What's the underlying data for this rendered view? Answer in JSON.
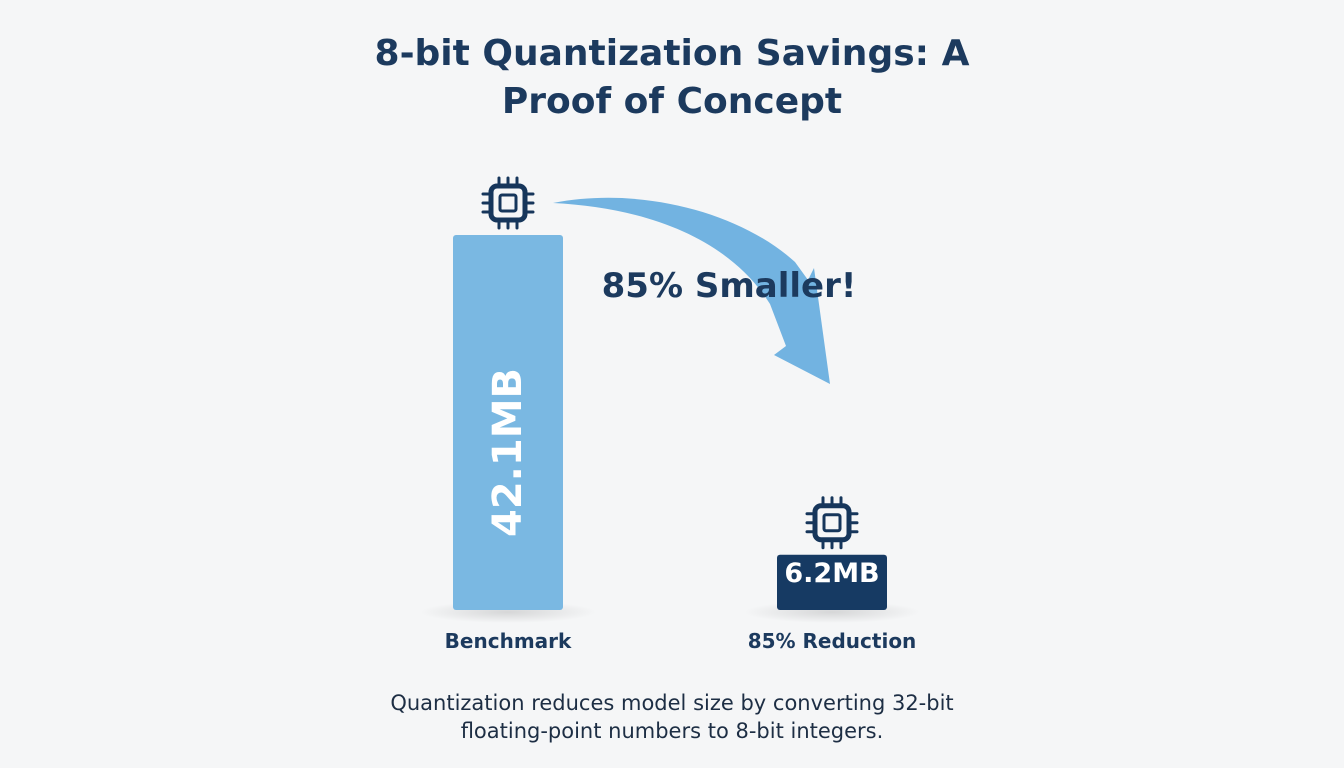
{
  "title": {
    "line1": "8-bit Quantization Savings: A",
    "line2": "Proof of Concept"
  },
  "annotation": "85% Smaller!",
  "caption": {
    "line1": "Quantization reduces model size by converting 32-bit",
    "line2": "floating-point numbers to 8-bit integers."
  },
  "icons": {
    "bar_top": "cpu-chip-icon",
    "arrow": "curved-arrow-icon"
  },
  "colors": {
    "title": "#1c3a5e",
    "benchmark_bar": "#7ab8e2",
    "quantized_bar": "#163a63",
    "arrow": "#72b3e1",
    "chip": "#16365b",
    "background": "#f5f6f7"
  },
  "chart_data": {
    "type": "bar",
    "title": "8-bit Quantization Savings: A Proof of Concept",
    "categories": [
      "Benchmark",
      "85% Reduction"
    ],
    "values": [
      42.1,
      6.2
    ],
    "unit": "MB",
    "data_labels": [
      "42.1MB",
      "6.2MB"
    ],
    "bar_colors": [
      "#7ab8e2",
      "#163a63"
    ],
    "annotation": "85% Smaller!",
    "xlabel": "",
    "ylabel": "",
    "ylim": [
      0,
      42.1
    ],
    "grid": false,
    "legend": "none"
  }
}
